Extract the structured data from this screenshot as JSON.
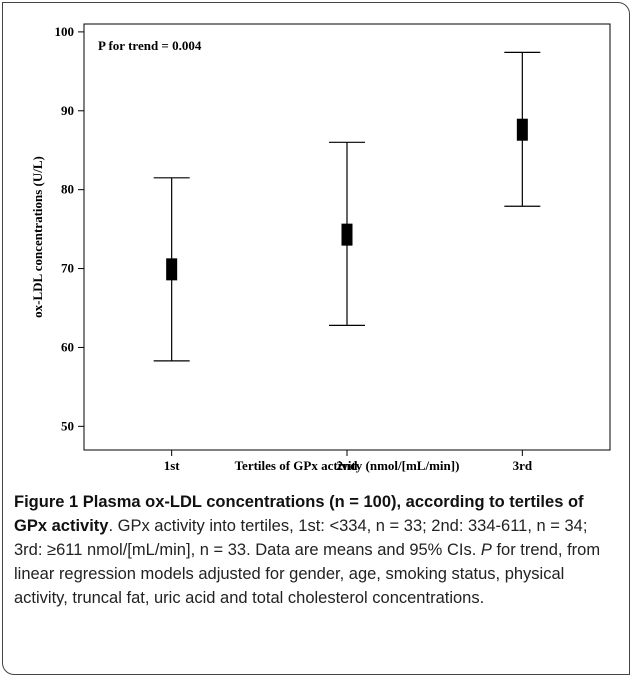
{
  "chart_data": {
    "type": "error-bar",
    "annotation": "P for trend = 0.004",
    "xlabel": "Tertiles of GPx activity (nmol/[mL/min])",
    "ylabel": "ox-LDL concentrations (U/L)",
    "ylim": [
      47,
      101
    ],
    "yticks": [
      50,
      60,
      70,
      80,
      90,
      100
    ],
    "categories": [
      "1st",
      "2nd",
      "3rd"
    ],
    "means": [
      69.9,
      74.3,
      87.6
    ],
    "lower": [
      58.3,
      62.8,
      77.9
    ],
    "upper": [
      81.5,
      86.0,
      97.4
    ],
    "grid": false
  },
  "caption": {
    "title": "Figure 1 Plasma ox-LDL concentrations (n = 100), according to tertiles of GPx activity",
    "body_1": ". GPx activity into tertiles, 1st: <334, n = 33; 2nd: 334-611, n = 34; 3rd: ≥611 nmol/[mL/min], n = 33. Data are means and 95% CIs. ",
    "italic_p": "P",
    "body_2": " for trend, from linear regression models adjusted for gender, age, smoking status, physical activity, truncal fat, uric acid and total cholesterol concentrations."
  }
}
